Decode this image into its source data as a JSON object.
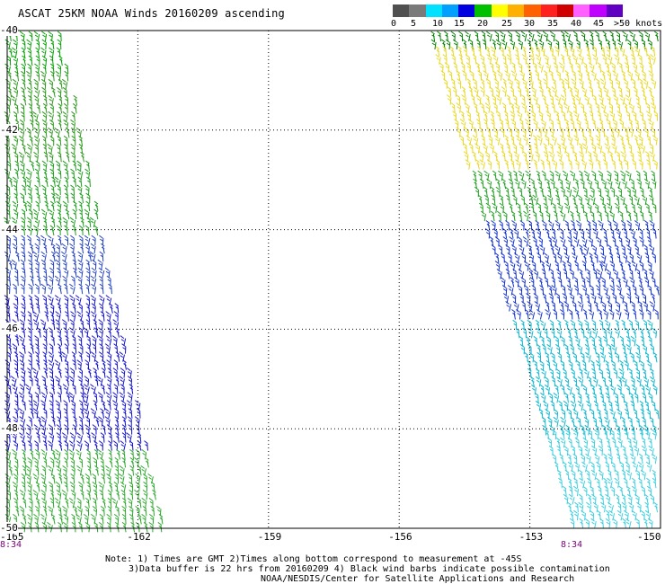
{
  "title": "ASCAT 25KM NOAA Winds 20160209 ascending",
  "legend": {
    "labels": [
      "0",
      "5",
      "10",
      "15",
      "20",
      "25",
      "30",
      "35",
      "40",
      "45",
      ">50 knots"
    ],
    "colors": [
      "#505050",
      "#7a7a7a",
      "#00e0ff",
      "#00a0ff",
      "#0000e0",
      "#00c000",
      "#ffff00",
      "#ffb000",
      "#ff6000",
      "#ff2020",
      "#d00000",
      "#ff60ff",
      "#c000ff",
      "#6000c0"
    ]
  },
  "axes": {
    "lon_ticks": [
      "-165",
      "-162",
      "-159",
      "-156",
      "-153",
      "-150"
    ],
    "lat_ticks": [
      "-40",
      "-42",
      "-44",
      "-46",
      "-48",
      "-50"
    ],
    "lon_range": [
      -165,
      -150
    ],
    "lat_range": [
      -50,
      -40
    ]
  },
  "pass_times": [
    "8:34",
    "8:34"
  ],
  "notes": [
    "Note: 1) Times are GMT 2)Times along bottom correspond to measurement at -45S",
    "3)Data buffer is 22 hrs from 20160209 4) Black wind barbs indicate possible contamination",
    "NOAA/NESDIS/Center for Satellite Applications and Research"
  ],
  "swaths": [
    {
      "name": "west-swath",
      "lon_top": [
        -165,
        -163.7
      ],
      "lon_bottom": [
        -165,
        -161.3
      ]
    },
    {
      "name": "east-swath",
      "lon_top": [
        -155.3,
        -150
      ],
      "lon_bottom": [
        -152,
        -150
      ]
    }
  ],
  "wind_bands": [
    {
      "swath": 0,
      "lat": [
        -40,
        -40.8
      ],
      "color": "#00a000"
    },
    {
      "swath": 0,
      "lat": [
        -40.8,
        -42.6
      ],
      "color": "#2e9a1e"
    },
    {
      "swath": 0,
      "lat": [
        -42.6,
        -44.1
      ],
      "color": "#20a020"
    },
    {
      "swath": 0,
      "lat": [
        -44.1,
        -45.3
      ],
      "color": "#2040c0"
    },
    {
      "swath": 0,
      "lat": [
        -45.3,
        -48.4
      ],
      "color": "#1010d0"
    },
    {
      "swath": 0,
      "lat": [
        -48.4,
        -50
      ],
      "color": "#2aa82a"
    },
    {
      "swath": 1,
      "lat": [
        -40,
        -40.3
      ],
      "color": "#008000"
    },
    {
      "swath": 1,
      "lat": [
        -40.3,
        -42.8
      ],
      "color": "#e8d820"
    },
    {
      "swath": 1,
      "lat": [
        -42.8,
        -43.8
      ],
      "color": "#20a020"
    },
    {
      "swath": 1,
      "lat": [
        -43.8,
        -45.8
      ],
      "color": "#1030d0"
    },
    {
      "swath": 1,
      "lat": [
        -45.8,
        -48.0
      ],
      "color": "#10b8d0"
    },
    {
      "swath": 1,
      "lat": [
        -48.0,
        -50
      ],
      "color": "#40d0e0"
    }
  ]
}
